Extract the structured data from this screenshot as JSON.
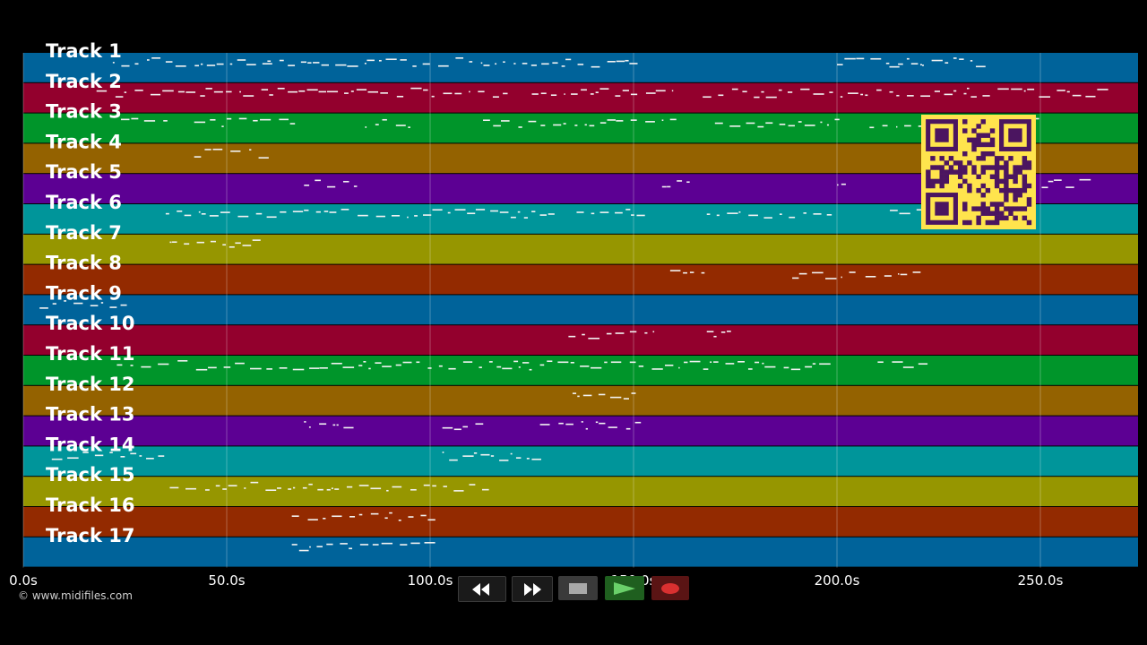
{
  "tracks": [
    {
      "label": "Track 1",
      "color": "#00639a"
    },
    {
      "label": "Track 2",
      "color": "#93002d"
    },
    {
      "label": "Track 3",
      "color": "#00952a"
    },
    {
      "label": "Track 4",
      "color": "#946200"
    },
    {
      "label": "Track 5",
      "color": "#5c0093"
    },
    {
      "label": "Track 6",
      "color": "#00959a"
    },
    {
      "label": "Track 7",
      "color": "#969600"
    },
    {
      "label": "Track 8",
      "color": "#932a00"
    },
    {
      "label": "Track 9",
      "color": "#00639a"
    },
    {
      "label": "Track 10",
      "color": "#93002d"
    },
    {
      "label": "Track 11",
      "color": "#00952a"
    },
    {
      "label": "Track 12",
      "color": "#946200"
    },
    {
      "label": "Track 13",
      "color": "#5c0093"
    },
    {
      "label": "Track 14",
      "color": "#00959a"
    },
    {
      "label": "Track 15",
      "color": "#969600"
    },
    {
      "label": "Track 16",
      "color": "#932a00"
    },
    {
      "label": "Track 17",
      "color": "#00639a"
    }
  ],
  "time_axis": {
    "ticks": [
      "0.0s",
      "50.0s",
      "100.0s",
      "150.0s",
      "200.0s",
      "250.0s"
    ],
    "tick_values": [
      0,
      50,
      100,
      150,
      200,
      250
    ],
    "max_seconds": 274
  },
  "copyright": "© www.midifiles.com",
  "transport": {
    "rewind": "rewind-icon",
    "fast_forward": "fast-forward-icon",
    "stop": "stop-icon",
    "play": "play-icon",
    "record": "record-icon"
  },
  "qr_code": {
    "color_fg": "#4b1560",
    "color_bg": "#ffe44d"
  }
}
